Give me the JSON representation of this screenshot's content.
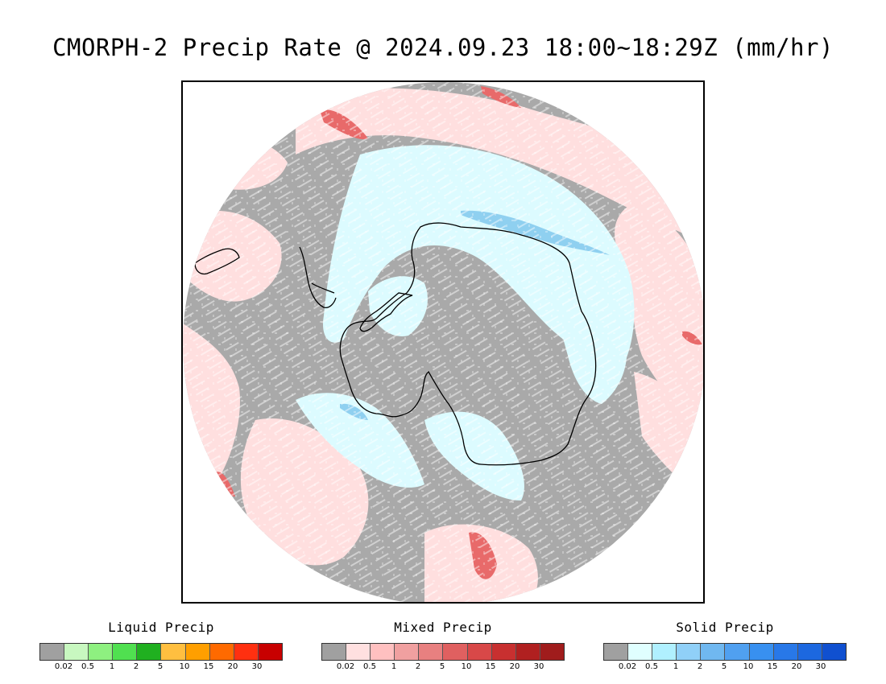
{
  "title": "CMORPH-2 Precip Rate @ 2024.09.23 18:00~18:29Z (mm/hr)",
  "map": {
    "projection": "south-polar-stereographic",
    "region": "Antarctica",
    "colors": {
      "no_precip": "#a9a9a9",
      "mixed_light": "#ffdfdf",
      "mixed_heavy": "#e86a6a",
      "solid_light": "#dcfbff",
      "solid_medium": "#8fd0f0",
      "coastline": "#000000"
    }
  },
  "legends": [
    {
      "title": "Liquid Precip",
      "ticks": [
        "0.02",
        "0.5",
        "1",
        "2",
        "5",
        "10",
        "15",
        "20",
        "30"
      ],
      "colors": [
        "#a0a0a0",
        "#c8f8c0",
        "#8ef080",
        "#50e050",
        "#20b020",
        "#ffbf40",
        "#ff9f00",
        "#ff6a00",
        "#ff3010",
        "#c80000"
      ]
    },
    {
      "title": "Mixed Precip",
      "ticks": [
        "0.02",
        "0.5",
        "1",
        "2",
        "5",
        "10",
        "15",
        "20",
        "30"
      ],
      "colors": [
        "#a0a0a0",
        "#ffe0e0",
        "#ffc0c0",
        "#f0a0a0",
        "#e88080",
        "#e06060",
        "#d84848",
        "#c83030",
        "#b02020",
        "#a01c1c"
      ]
    },
    {
      "title": "Solid Precip",
      "ticks": [
        "0.02",
        "0.5",
        "1",
        "2",
        "5",
        "10",
        "15",
        "20",
        "30"
      ],
      "colors": [
        "#a0a0a0",
        "#e0ffff",
        "#b0f0ff",
        "#90d0f8",
        "#70b8f0",
        "#50a0f0",
        "#3890f0",
        "#2878e8",
        "#1c68e0",
        "#1050d0"
      ]
    }
  ]
}
